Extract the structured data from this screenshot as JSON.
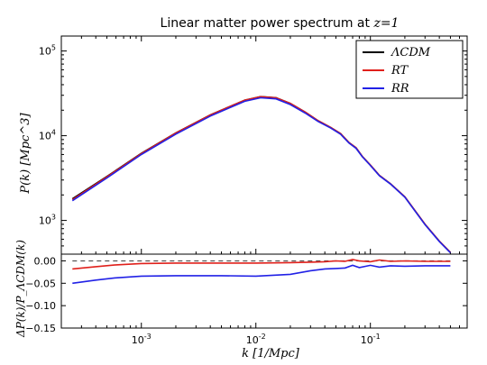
{
  "chart_data": [
    {
      "type": "line",
      "panel": "top",
      "title": "Linear matter power spectrum at z=1",
      "ylabel": "P(k)    [Mpc^3]",
      "xscale": "log",
      "yscale": "log",
      "xlim": [
        0.0002,
        0.7
      ],
      "ylim": [
        400,
        150000
      ],
      "yticks": [
        {
          "value": 1000,
          "label": "10^3"
        },
        {
          "value": 10000,
          "label": "10^4"
        },
        {
          "value": 100000,
          "label": "10^5"
        }
      ],
      "legend": {
        "placement": "top-right",
        "entries": [
          "ΛCDM",
          "RT",
          "RR"
        ]
      },
      "series": [
        {
          "name": "ΛCDM",
          "color": "#000000",
          "x": [
            0.00025,
            0.0005,
            0.001,
            0.002,
            0.004,
            0.006,
            0.008,
            0.011,
            0.015,
            0.02,
            0.027,
            0.035,
            0.045,
            0.055,
            0.065,
            0.075,
            0.085,
            0.1,
            0.12,
            0.15,
            0.2,
            0.3,
            0.4,
            0.5
          ],
          "y": [
            1800,
            3300,
            6200,
            10800,
            17600,
            22300,
            26300,
            28900,
            28100,
            24100,
            19000,
            15000,
            12500,
            10600,
            8300,
            7200,
            5700,
            4500,
            3400,
            2700,
            1900,
            900,
            570,
            420
          ]
        },
        {
          "name": "RT",
          "color": "#e0201b",
          "x": [
            0.00025,
            0.0005,
            0.001,
            0.002,
            0.004,
            0.006,
            0.008,
            0.011,
            0.015,
            0.02,
            0.027,
            0.035,
            0.045,
            0.055,
            0.065,
            0.075,
            0.085,
            0.1,
            0.12,
            0.15,
            0.2,
            0.3,
            0.4,
            0.5
          ],
          "y": [
            1760,
            3260,
            6150,
            10750,
            17550,
            22250,
            26250,
            28850,
            28050,
            24050,
            18980,
            14990,
            12500,
            10600,
            8300,
            7200,
            5700,
            4500,
            3400,
            2700,
            1900,
            900,
            570,
            420
          ]
        },
        {
          "name": "RR",
          "color": "#2121e6",
          "x": [
            0.00025,
            0.0005,
            0.001,
            0.002,
            0.004,
            0.006,
            0.008,
            0.011,
            0.015,
            0.02,
            0.027,
            0.035,
            0.045,
            0.055,
            0.065,
            0.075,
            0.085,
            0.1,
            0.12,
            0.15,
            0.2,
            0.3,
            0.4,
            0.5
          ],
          "y": [
            1710,
            3170,
            6000,
            10450,
            17050,
            21600,
            25500,
            28000,
            27200,
            23300,
            18500,
            14700,
            12300,
            10400,
            8200,
            7100,
            5650,
            4450,
            3370,
            2680,
            1880,
            890,
            565,
            415
          ]
        }
      ]
    },
    {
      "type": "line",
      "panel": "bottom",
      "xlabel": "k    [1/Mpc]",
      "ylabel": "ΔP(k)/P_ΛCDM(k)",
      "xscale": "log",
      "xlim": [
        0.0002,
        0.7
      ],
      "ylim": [
        -0.15,
        0.015
      ],
      "xticks": [
        {
          "value": 0.001,
          "label": "10^-3"
        },
        {
          "value": 0.01,
          "label": "10^-2"
        },
        {
          "value": 0.1,
          "label": "10^-1"
        }
      ],
      "yticks": [
        {
          "value": 0.0,
          "label": "0.00"
        },
        {
          "value": -0.05,
          "label": "−0.05"
        },
        {
          "value": -0.1,
          "label": "−0.10"
        },
        {
          "value": -0.15,
          "label": "−0.15"
        }
      ],
      "series": [
        {
          "name": "zero",
          "color": "#555555",
          "dashed": true,
          "x": [
            0.00025,
            0.5
          ],
          "y": [
            0.0,
            0.0
          ]
        },
        {
          "name": "RT",
          "color": "#e0201b",
          "x": [
            0.00025,
            0.0004,
            0.0006,
            0.001,
            0.002,
            0.005,
            0.01,
            0.02,
            0.03,
            0.04,
            0.05,
            0.06,
            0.07,
            0.08,
            0.1,
            0.12,
            0.15,
            0.2,
            0.3,
            0.5
          ],
          "y": [
            -0.018,
            -0.013,
            -0.009,
            -0.006,
            -0.005,
            -0.005,
            -0.005,
            -0.004,
            -0.003,
            -0.002,
            0.0,
            -0.001,
            0.003,
            0.0,
            -0.002,
            0.002,
            -0.001,
            0.0,
            -0.001,
            -0.001
          ]
        },
        {
          "name": "RR",
          "color": "#2121e6",
          "x": [
            0.00025,
            0.0004,
            0.0006,
            0.001,
            0.002,
            0.005,
            0.01,
            0.02,
            0.03,
            0.04,
            0.05,
            0.06,
            0.07,
            0.08,
            0.1,
            0.12,
            0.15,
            0.2,
            0.3,
            0.5
          ],
          "y": [
            -0.05,
            -0.043,
            -0.038,
            -0.034,
            -0.033,
            -0.033,
            -0.034,
            -0.03,
            -0.022,
            -0.018,
            -0.017,
            -0.016,
            -0.01,
            -0.015,
            -0.01,
            -0.014,
            -0.011,
            -0.012,
            -0.011,
            -0.011
          ]
        }
      ]
    }
  ]
}
